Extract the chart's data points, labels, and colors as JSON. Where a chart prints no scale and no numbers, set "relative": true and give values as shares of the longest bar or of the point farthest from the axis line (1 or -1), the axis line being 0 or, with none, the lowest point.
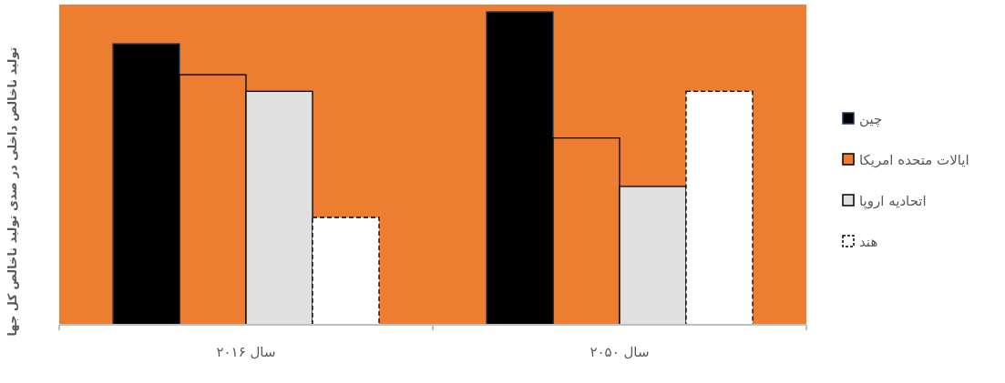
{
  "chart_data": {
    "type": "bar",
    "relative": true,
    "ylabel": "تولید ناخالص داخلی در صدی تولید ناخالص کل جها",
    "categories": [
      "سال ۲۰۱۶",
      "سال ۲۰۵۰"
    ],
    "legend": "right",
    "series": [
      {
        "name": "چین",
        "color": "#000000",
        "values": [
          0.898,
          1
        ]
      },
      {
        "name": "ایالات متحده امریکا",
        "color": "#ed7d31",
        "values": [
          0.799,
          0.597
        ]
      },
      {
        "name": "اتحادیه اروپا",
        "color": "#e0e0e0",
        "values": [
          0.746,
          0.442
        ]
      },
      {
        "name": "هند",
        "color": "#ffffff",
        "values": [
          0.343,
          0.746
        ]
      }
    ]
  }
}
